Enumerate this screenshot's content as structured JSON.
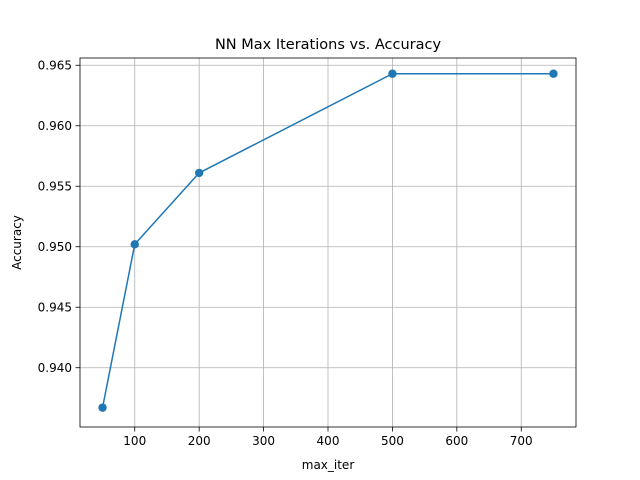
{
  "chart_data": {
    "type": "line",
    "title": "NN Max Iterations vs. Accuracy",
    "xlabel": "max_iter",
    "ylabel": "Accuracy",
    "x": [
      50,
      100,
      200,
      500,
      750
    ],
    "series": [
      {
        "values": [
          0.9367,
          0.9502,
          0.9561,
          0.9643,
          0.9643
        ],
        "color": "#1f77b4",
        "marker": "circle"
      }
    ],
    "xlim": [
      15.0,
      785.0
    ],
    "ylim": [
      0.9351,
      0.9656
    ],
    "xticks": [
      100,
      200,
      300,
      400,
      500,
      600,
      700
    ],
    "xtick_labels": [
      "100",
      "200",
      "300",
      "400",
      "500",
      "600",
      "700"
    ],
    "yticks": [
      0.94,
      0.945,
      0.95,
      0.955,
      0.96,
      0.965
    ],
    "ytick_labels": [
      "0.940",
      "0.945",
      "0.950",
      "0.955",
      "0.960",
      "0.965"
    ],
    "grid": true,
    "legend": "none"
  }
}
